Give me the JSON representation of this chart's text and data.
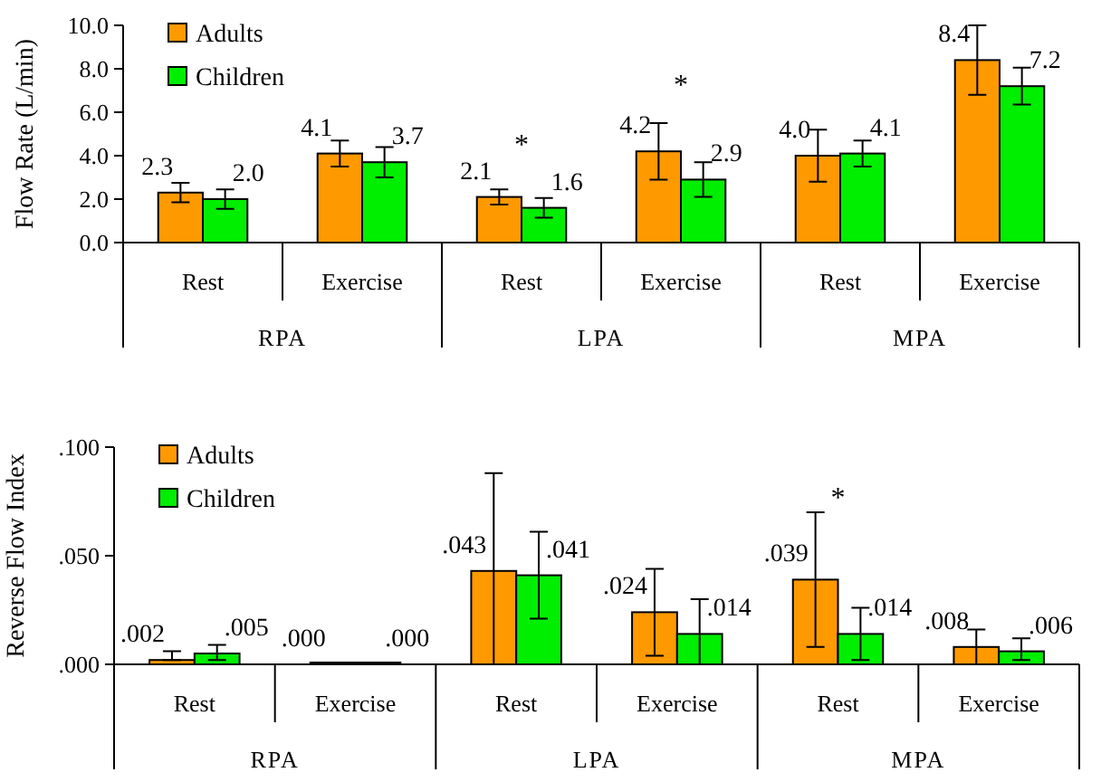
{
  "chart_data": [
    {
      "type": "bar",
      "ylabel": "Flow Rate (L/min)",
      "categories": [
        "Rest",
        "Exercise",
        "Rest",
        "Exercise",
        "Rest",
        "Exercise"
      ],
      "series": [
        {
          "name": "Adults",
          "color": "#ff9900",
          "values": [
            2.3,
            4.1,
            2.1,
            4.2,
            4.0,
            8.4
          ],
          "errors": [
            0.45,
            0.6,
            0.35,
            1.3,
            1.2,
            1.6
          ],
          "value_labels": [
            "2.3",
            "4.1",
            "2.1",
            "4.2",
            "4.0",
            "8.4"
          ]
        },
        {
          "name": "Children",
          "color": "#00ee00",
          "values": [
            2.0,
            3.7,
            1.6,
            2.9,
            4.1,
            7.2
          ],
          "errors": [
            0.45,
            0.7,
            0.45,
            0.8,
            0.6,
            0.85
          ],
          "value_labels": [
            "2.0",
            "3.7",
            "1.6",
            "2.9",
            "4.1",
            "7.2"
          ]
        }
      ],
      "ylim": [
        0,
        10
      ],
      "yticks": [
        {
          "value": 0,
          "label": "0.0"
        },
        {
          "value": 2,
          "label": "2.0"
        },
        {
          "value": 4,
          "label": "4.0"
        },
        {
          "value": 6,
          "label": "6.0"
        },
        {
          "value": 8,
          "label": "8.0"
        },
        {
          "value": 10,
          "label": "10.0"
        }
      ],
      "annotations": [
        "RPA",
        "LPA",
        "MPA",
        "*",
        "*"
      ],
      "legend": "top left",
      "grid": false
    },
    {
      "type": "bar",
      "ylabel": "Reverse Flow Index",
      "categories": [
        "Rest",
        "Exercise",
        "Rest",
        "Exercise",
        "Rest",
        "Exercise"
      ],
      "series": [
        {
          "name": "Adults",
          "color": "#ff9900",
          "values": [
            0.002,
            0.0,
            0.043,
            0.024,
            0.039,
            0.008
          ],
          "errors": [
            [
              0.002,
              0.006
            ],
            null,
            [
              0.0,
              0.088
            ],
            0.02,
            0.031,
            0.008
          ],
          "value_labels": [
            ".002",
            ".000",
            ".043",
            ".024",
            ".039",
            ".008"
          ]
        },
        {
          "name": "Children",
          "color": "#00ee00",
          "values": [
            0.005,
            0.0,
            0.041,
            0.014,
            0.014,
            0.006
          ],
          "errors": [
            [
              0.002,
              0.009
            ],
            null,
            0.02,
            [
              0.0,
              0.03
            ],
            0.012,
            [
              0.002,
              0.012
            ]
          ],
          "value_labels": [
            ".005",
            ".000",
            ".041",
            ".014",
            ".014",
            ".006"
          ]
        }
      ],
      "ylim": [
        0,
        0.1
      ],
      "yticks": [
        {
          "value": 0,
          "label": ".000"
        },
        {
          "value": 0.05,
          "label": ".050"
        },
        {
          "value": 0.1,
          "label": ".100"
        }
      ],
      "annotations": [
        "RPA",
        "LPA",
        "MPA",
        "*"
      ],
      "legend": "top left",
      "grid": false
    }
  ]
}
